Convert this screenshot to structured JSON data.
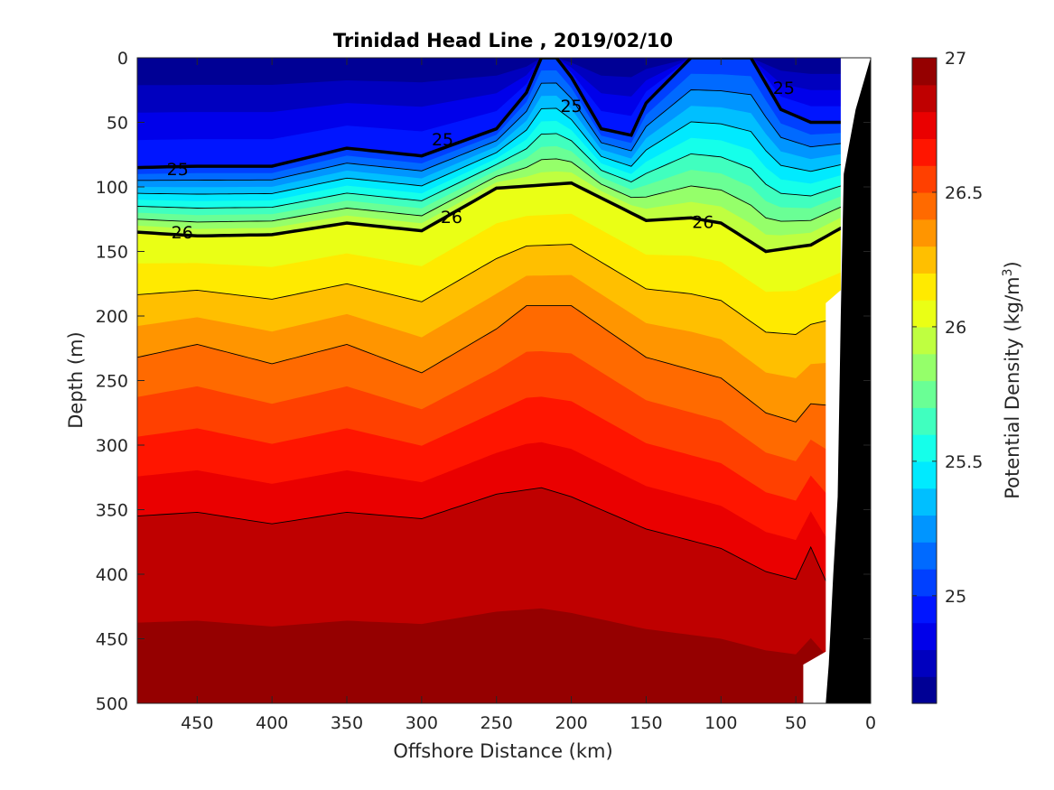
{
  "chart_data": {
    "type": "contour",
    "title": "Trinidad Head Line , 2019/02/10",
    "xlabel": "Offshore Distance (km)",
    "ylabel": "Depth (m)",
    "colorbar_label": "Potential Density (kg/m³)",
    "colorbar_label_base": "Potential Density (kg/m",
    "colorbar_label_sup": "3",
    "colorbar_label_end": ")",
    "xlim": [
      490,
      0
    ],
    "xdir": "reversed",
    "ylim": [
      0,
      500
    ],
    "ydir": "reversed",
    "xticks": [
      450,
      400,
      350,
      300,
      250,
      200,
      150,
      100,
      50,
      0
    ],
    "yticks": [
      0,
      50,
      100,
      150,
      200,
      250,
      300,
      350,
      400,
      450,
      500
    ],
    "clim": [
      24.6,
      27.0
    ],
    "colorbar_ticks": [
      25,
      25.5,
      26,
      26.5,
      27
    ],
    "contour_labels": [
      {
        "text": "25",
        "x": 463,
        "y": 86
      },
      {
        "text": "25",
        "x": 286,
        "y": 63
      },
      {
        "text": "25",
        "x": 200,
        "y": 37
      },
      {
        "text": "25",
        "x": 58,
        "y": 23
      },
      {
        "text": "26",
        "x": 460,
        "y": 135
      },
      {
        "text": "26",
        "x": 280,
        "y": 123
      },
      {
        "text": "26",
        "x": 112,
        "y": 127
      }
    ],
    "isopycnals": [
      {
        "sigma": 25.0,
        "bold": true,
        "depth_at_x": {
          "490": 85,
          "450": 84,
          "400": 84,
          "350": 70,
          "300": 76,
          "250": 55,
          "230": 27,
          "220": 0,
          "210": 0,
          "200": 15,
          "180": 55,
          "160": 60,
          "150": 35,
          "120": 0,
          "80": 0,
          "60": 40,
          "40": 50,
          "20": 50
        }
      },
      {
        "sigma": 26.0,
        "bold": true,
        "depth_at_x": {
          "490": 135,
          "450": 138,
          "400": 137,
          "350": 128,
          "300": 134,
          "250": 101,
          "200": 97,
          "150": 126,
          "120": 124,
          "100": 128,
          "70": 150,
          "40": 145,
          "20": 132
        }
      },
      {
        "sigma": 26.4,
        "bold": false,
        "depth_at_x": {
          "490": 232,
          "450": 222,
          "400": 237,
          "350": 222,
          "300": 244,
          "250": 210,
          "230": 192,
          "200": 192,
          "150": 232,
          "100": 248,
          "70": 275,
          "50": 282,
          "40": 268,
          "30": 269
        }
      },
      {
        "sigma": 26.8,
        "bold": false,
        "depth_at_x": {
          "490": 355,
          "450": 352,
          "400": 361,
          "350": 352,
          "300": 357,
          "250": 338,
          "220": 333,
          "200": 340,
          "150": 365,
          "100": 380,
          "70": 398,
          "50": 404,
          "40": 379,
          "30": 405
        }
      }
    ],
    "bottom_topography_depth_at_x": {
      "30": 500,
      "28": 470,
      "25": 400,
      "22": 340,
      "20": 200,
      "18": 90,
      "10": 40,
      "0": 0
    }
  }
}
